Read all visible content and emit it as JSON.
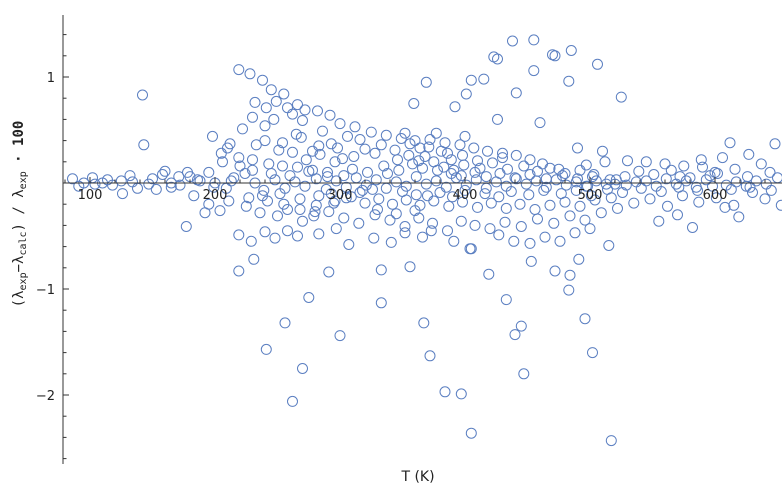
{
  "chart_data": {
    "type": "scatter",
    "xlabel": "T (K)",
    "ylabel_parts": [
      "(λ",
      "exp",
      "−λ",
      "calc",
      ") / λ",
      "exp",
      " · 100"
    ],
    "xlim": [
      70,
      660
    ],
    "ylim": [
      -2.62,
      1.5
    ],
    "x_ticks": [
      100,
      200,
      300,
      400,
      500,
      600
    ],
    "x_tick_labels": [
      "100",
      "200",
      "300",
      "400",
      "500",
      "600"
    ],
    "y_ticks": [
      -2,
      -1,
      1
    ],
    "y_tick_labels": [
      "−2",
      "−1",
      "1"
    ],
    "marker_color": "#5b7fc1",
    "marker": "open-circle",
    "grid": false,
    "points": [
      [
        219,
        1.07
      ],
      [
        228,
        1.03
      ],
      [
        238,
        0.97
      ],
      [
        245,
        0.88
      ],
      [
        255,
        0.84
      ],
      [
        266,
        0.74
      ],
      [
        232,
        0.76
      ],
      [
        241,
        0.71
      ],
      [
        249,
        0.77
      ],
      [
        258,
        0.71
      ],
      [
        262,
        0.65
      ],
      [
        272,
        0.69
      ],
      [
        282,
        0.68
      ],
      [
        292,
        0.64
      ],
      [
        230,
        0.62
      ],
      [
        247,
        0.6
      ],
      [
        270,
        0.59
      ],
      [
        300,
        0.56
      ],
      [
        312,
        0.53
      ],
      [
        325,
        0.48
      ],
      [
        337,
        0.45
      ],
      [
        349,
        0.42
      ],
      [
        360,
        0.4
      ],
      [
        372,
        0.41
      ],
      [
        384,
        0.38
      ],
      [
        396,
        0.36
      ],
      [
        407,
        0.33
      ],
      [
        418,
        0.3
      ],
      [
        430,
        0.28
      ],
      [
        441,
        0.26
      ],
      [
        452,
        0.22
      ],
      [
        240,
        0.54
      ],
      [
        222,
        0.51
      ],
      [
        265,
        0.46
      ],
      [
        286,
        0.49
      ],
      [
        306,
        0.44
      ],
      [
        316,
        0.41
      ],
      [
        198,
        0.44
      ],
      [
        212,
        0.37
      ],
      [
        205,
        0.28
      ],
      [
        219,
        0.24
      ],
      [
        230,
        0.22
      ],
      [
        243,
        0.18
      ],
      [
        254,
        0.16
      ],
      [
        266,
        0.15
      ],
      [
        278,
        0.12
      ],
      [
        290,
        0.1
      ],
      [
        303,
        0.07
      ],
      [
        142,
        0.83
      ],
      [
        143,
        0.36
      ],
      [
        206,
        0.2
      ],
      [
        210,
        0.33
      ],
      [
        233,
        0.36
      ],
      [
        278,
        0.3
      ],
      [
        293,
        0.37
      ],
      [
        352,
        0.47
      ],
      [
        377,
        0.47
      ],
      [
        400,
        0.44
      ],
      [
        369,
        0.95
      ],
      [
        359,
        0.75
      ],
      [
        392,
        0.72
      ],
      [
        401,
        0.84
      ],
      [
        405,
        0.97
      ],
      [
        415,
        0.98
      ],
      [
        423,
        1.19
      ],
      [
        426,
        1.17
      ],
      [
        438,
        1.34
      ],
      [
        455,
        1.35
      ],
      [
        470,
        1.21
      ],
      [
        472,
        1.2
      ],
      [
        485,
        1.25
      ],
      [
        506,
        1.12
      ],
      [
        455,
        1.06
      ],
      [
        483,
        0.96
      ],
      [
        441,
        0.85
      ],
      [
        426,
        0.6
      ],
      [
        460,
        0.57
      ],
      [
        490,
        0.33
      ],
      [
        525,
        0.81
      ],
      [
        510,
        0.3
      ],
      [
        530,
        0.21
      ],
      [
        545,
        0.2
      ],
      [
        560,
        0.18
      ],
      [
        575,
        0.16
      ],
      [
        590,
        0.15
      ],
      [
        606,
        0.24
      ],
      [
        612,
        0.38
      ],
      [
        627,
        0.27
      ],
      [
        648,
        0.37
      ],
      [
        660,
        0.03
      ],
      [
        637,
        0.18
      ],
      [
        600,
        0.1
      ],
      [
        572,
        0.06
      ],
      [
        545,
        0.02
      ],
      [
        520,
        -0.01
      ],
      [
        498,
        -0.03
      ],
      [
        95,
        0.0
      ],
      [
        102,
        0.05
      ],
      [
        110,
        0.0
      ],
      [
        118,
        -0.02
      ],
      [
        125,
        0.02
      ],
      [
        134,
        0.01
      ],
      [
        138,
        -0.05
      ],
      [
        150,
        0.04
      ],
      [
        158,
        0.08
      ],
      [
        165,
        0.0
      ],
      [
        172,
        -0.02
      ],
      [
        180,
        0.06
      ],
      [
        188,
        0.02
      ],
      [
        195,
        0.1
      ],
      [
        200,
        0.0
      ],
      [
        86,
        0.04
      ],
      [
        91,
        -0.03
      ],
      [
        104,
        -0.01
      ],
      [
        114,
        0.03
      ],
      [
        126,
        -0.1
      ],
      [
        132,
        0.07
      ],
      [
        147,
        -0.01
      ],
      [
        160,
        0.11
      ],
      [
        178,
        0.1
      ],
      [
        209,
        -0.05
      ],
      [
        215,
        0.05
      ],
      [
        224,
        0.09
      ],
      [
        232,
        0.0
      ],
      [
        239,
        -0.07
      ],
      [
        248,
        0.03
      ],
      [
        256,
        -0.05
      ],
      [
        264,
        0.01
      ],
      [
        272,
        -0.03
      ],
      [
        281,
        0.04
      ],
      [
        289,
        -0.06
      ],
      [
        297,
        0.02
      ],
      [
        305,
        -0.04
      ],
      [
        313,
        0.05
      ],
      [
        321,
        -0.02
      ],
      [
        329,
        0.03
      ],
      [
        337,
        -0.05
      ],
      [
        345,
        0.01
      ],
      [
        353,
        -0.03
      ],
      [
        361,
        0.06
      ],
      [
        369,
        -0.01
      ],
      [
        377,
        0.02
      ],
      [
        385,
        -0.04
      ],
      [
        393,
        0.05
      ],
      [
        401,
        -0.02
      ],
      [
        409,
        0.03
      ],
      [
        417,
        -0.05
      ],
      [
        425,
        0.01
      ],
      [
        433,
        -0.03
      ],
      [
        441,
        0.04
      ],
      [
        449,
        -0.01
      ],
      [
        457,
        0.02
      ],
      [
        465,
        -0.04
      ],
      [
        473,
        0.03
      ],
      [
        481,
        -0.02
      ],
      [
        489,
        0.01
      ],
      [
        497,
        -0.03
      ],
      [
        505,
        0.02
      ],
      [
        513,
        -0.01
      ],
      [
        521,
        0.03
      ],
      [
        529,
        -0.02
      ],
      [
        537,
        0.01
      ],
      [
        553,
        -0.03
      ],
      [
        561,
        0.04
      ],
      [
        569,
        -0.01
      ],
      [
        577,
        0.02
      ],
      [
        585,
        -0.04
      ],
      [
        593,
        0.03
      ],
      [
        609,
        -0.02
      ],
      [
        617,
        0.01
      ],
      [
        625,
        -0.03
      ],
      [
        633,
        0.02
      ],
      [
        641,
        -0.01
      ],
      [
        650,
        0.05
      ],
      [
        230,
        0.12
      ],
      [
        245,
        0.09
      ],
      [
        260,
        0.07
      ],
      [
        275,
        0.11
      ],
      [
        290,
        0.06
      ],
      [
        310,
        0.13
      ],
      [
        322,
        0.1
      ],
      [
        335,
        0.16
      ],
      [
        347,
        0.12
      ],
      [
        358,
        0.18
      ],
      [
        366,
        0.14
      ],
      [
        375,
        0.2
      ],
      [
        383,
        0.15
      ],
      [
        391,
        0.12
      ],
      [
        399,
        0.17
      ],
      [
        412,
        0.14
      ],
      [
        422,
        0.19
      ],
      [
        434,
        0.13
      ],
      [
        447,
        0.16
      ],
      [
        458,
        0.11
      ],
      [
        468,
        0.14
      ],
      [
        480,
        0.09
      ],
      [
        492,
        0.12
      ],
      [
        503,
        0.08
      ],
      [
        238,
        -0.12
      ],
      [
        252,
        -0.1
      ],
      [
        268,
        -0.15
      ],
      [
        283,
        -0.12
      ],
      [
        296,
        -0.17
      ],
      [
        309,
        -0.13
      ],
      [
        320,
        -0.19
      ],
      [
        331,
        -0.15
      ],
      [
        342,
        -0.2
      ],
      [
        353,
        -0.16
      ],
      [
        364,
        -0.21
      ],
      [
        375,
        -0.17
      ],
      [
        387,
        -0.22
      ],
      [
        398,
        -0.18
      ],
      [
        410,
        -0.23
      ],
      [
        421,
        -0.19
      ],
      [
        433,
        -0.24
      ],
      [
        444,
        -0.2
      ],
      [
        456,
        -0.25
      ],
      [
        468,
        -0.21
      ],
      [
        480,
        -0.18
      ],
      [
        492,
        -0.22
      ],
      [
        504,
        -0.16
      ],
      [
        517,
        -0.14
      ],
      [
        183,
        -0.12
      ],
      [
        192,
        -0.28
      ],
      [
        177,
        -0.41
      ],
      [
        195,
        -0.2
      ],
      [
        204,
        -0.26
      ],
      [
        211,
        -0.17
      ],
      [
        225,
        -0.22
      ],
      [
        236,
        -0.28
      ],
      [
        250,
        -0.31
      ],
      [
        258,
        -0.25
      ],
      [
        270,
        -0.36
      ],
      [
        279,
        -0.31
      ],
      [
        291,
        -0.27
      ],
      [
        303,
        -0.33
      ],
      [
        315,
        -0.38
      ],
      [
        328,
        -0.3
      ],
      [
        340,
        -0.35
      ],
      [
        352,
        -0.41
      ],
      [
        363,
        -0.33
      ],
      [
        374,
        -0.38
      ],
      [
        386,
        -0.45
      ],
      [
        397,
        -0.36
      ],
      [
        408,
        -0.4
      ],
      [
        420,
        -0.43
      ],
      [
        432,
        -0.37
      ],
      [
        445,
        -0.41
      ],
      [
        458,
        -0.34
      ],
      [
        471,
        -0.38
      ],
      [
        484,
        -0.31
      ],
      [
        496,
        -0.35
      ],
      [
        509,
        -0.28
      ],
      [
        522,
        -0.24
      ],
      [
        535,
        -0.19
      ],
      [
        548,
        -0.15
      ],
      [
        562,
        -0.22
      ],
      [
        574,
        -0.12
      ],
      [
        587,
        -0.18
      ],
      [
        601,
        -0.14
      ],
      [
        615,
        -0.21
      ],
      [
        630,
        -0.09
      ],
      [
        640,
        -0.15
      ],
      [
        662,
        -0.3
      ],
      [
        653,
        -0.21
      ],
      [
        619,
        -0.32
      ],
      [
        608,
        -0.23
      ],
      [
        582,
        -0.42
      ],
      [
        570,
        -0.3
      ],
      [
        555,
        -0.36
      ],
      [
        219,
        -0.49
      ],
      [
        229,
        -0.55
      ],
      [
        240,
        -0.46
      ],
      [
        248,
        -0.52
      ],
      [
        258,
        -0.45
      ],
      [
        266,
        -0.5
      ],
      [
        283,
        -0.48
      ],
      [
        297,
        -0.43
      ],
      [
        307,
        -0.58
      ],
      [
        327,
        -0.52
      ],
      [
        341,
        -0.56
      ],
      [
        352,
        -0.47
      ],
      [
        366,
        -0.51
      ],
      [
        373,
        -0.45
      ],
      [
        391,
        -0.55
      ],
      [
        404,
        -0.62
      ],
      [
        427,
        -0.49
      ],
      [
        439,
        -0.55
      ],
      [
        452,
        -0.57
      ],
      [
        464,
        -0.51
      ],
      [
        476,
        -0.55
      ],
      [
        488,
        -0.47
      ],
      [
        500,
        -0.43
      ],
      [
        219,
        -0.83
      ],
      [
        231,
        -0.72
      ],
      [
        291,
        -0.84
      ],
      [
        333,
        -0.82
      ],
      [
        356,
        -0.79
      ],
      [
        405,
        -0.62
      ],
      [
        419,
        -0.86
      ],
      [
        433,
        -1.1
      ],
      [
        453,
        -0.74
      ],
      [
        472,
        -0.83
      ],
      [
        484,
        -0.87
      ],
      [
        483,
        -1.01
      ],
      [
        491,
        -0.72
      ],
      [
        515,
        -0.59
      ],
      [
        333,
        -1.13
      ],
      [
        275,
        -1.08
      ],
      [
        256,
        -1.32
      ],
      [
        241,
        -1.57
      ],
      [
        300,
        -1.44
      ],
      [
        270,
        -1.75
      ],
      [
        367,
        -1.32
      ],
      [
        372,
        -1.63
      ],
      [
        384,
        -1.97
      ],
      [
        397,
        -1.99
      ],
      [
        440,
        -1.43
      ],
      [
        445,
        -1.35
      ],
      [
        447,
        -1.8
      ],
      [
        496,
        -1.28
      ],
      [
        502,
        -1.6
      ],
      [
        405,
        -2.36
      ],
      [
        517,
        -2.43
      ],
      [
        262,
        -2.06
      ],
      [
        280,
        -0.27
      ],
      [
        293,
        -0.1
      ],
      [
        318,
        -0.07
      ],
      [
        338,
        0.09
      ],
      [
        355,
        0.26
      ],
      [
        368,
        0.25
      ],
      [
        381,
        0.3
      ],
      [
        389,
        0.22
      ],
      [
        311,
        0.25
      ],
      [
        302,
        0.23
      ],
      [
        296,
        0.2
      ],
      [
        284,
        0.27
      ],
      [
        273,
        0.22
      ],
      [
        262,
        0.29
      ],
      [
        251,
        0.31
      ],
      [
        220,
        0.16
      ],
      [
        213,
        0.02
      ],
      [
        199,
        -0.04
      ],
      [
        186,
        0.03
      ],
      [
        171,
        0.06
      ],
      [
        165,
        -0.04
      ],
      [
        153,
        -0.06
      ],
      [
        320,
        0.32
      ],
      [
        333,
        0.36
      ],
      [
        344,
        0.31
      ],
      [
        371,
        0.34
      ],
      [
        386,
        0.28
      ],
      [
        398,
        0.26
      ],
      [
        410,
        0.21
      ],
      [
        430,
        0.24
      ],
      [
        462,
        0.18
      ],
      [
        475,
        0.13
      ],
      [
        497,
        0.17
      ],
      [
        512,
        0.2
      ],
      [
        539,
        0.11
      ],
      [
        551,
        0.08
      ],
      [
        565,
        0.12
      ],
      [
        580,
        0.05
      ],
      [
        596,
        0.07
      ],
      [
        589,
        0.22
      ],
      [
        602,
        0.09
      ],
      [
        616,
        0.13
      ],
      [
        626,
        0.06
      ],
      [
        644,
        0.1
      ],
      [
        330,
        -0.25
      ],
      [
        345,
        -0.29
      ],
      [
        360,
        -0.26
      ],
      [
        370,
        -0.12
      ],
      [
        380,
        -0.09
      ],
      [
        390,
        -0.13
      ],
      [
        400,
        -0.07
      ],
      [
        350,
        -0.08
      ],
      [
        361,
        -0.11
      ],
      [
        326,
        -0.06
      ],
      [
        316,
        -0.09
      ],
      [
        305,
        -0.14
      ],
      [
        295,
        -0.19
      ],
      [
        281,
        -0.21
      ],
      [
        268,
        -0.25
      ],
      [
        255,
        -0.2
      ],
      [
        242,
        -0.17
      ],
      [
        227,
        -0.14
      ],
      [
        416,
        -0.1
      ],
      [
        427,
        -0.13
      ],
      [
        437,
        -0.08
      ],
      [
        451,
        -0.11
      ],
      [
        463,
        -0.07
      ],
      [
        477,
        -0.1
      ],
      [
        489,
        -0.07
      ],
      [
        501,
        -0.12
      ],
      [
        514,
        -0.06
      ],
      [
        526,
        -0.09
      ],
      [
        541,
        -0.05
      ],
      [
        557,
        -0.08
      ],
      [
        571,
        -0.04
      ],
      [
        586,
        -0.07
      ],
      [
        598,
        -0.03
      ],
      [
        613,
        -0.06
      ],
      [
        628,
        -0.04
      ],
      [
        645,
        -0.07
      ],
      [
        240,
        0.4
      ],
      [
        254,
        0.38
      ],
      [
        269,
        0.43
      ],
      [
        283,
        0.35
      ],
      [
        298,
        0.33
      ],
      [
        328,
        0.28
      ],
      [
        346,
        0.22
      ],
      [
        363,
        0.21
      ],
      [
        356,
        0.37
      ],
      [
        364,
        0.33
      ],
      [
        378,
        0.12
      ],
      [
        389,
        0.09
      ],
      [
        397,
        0.07
      ],
      [
        408,
        0.1
      ],
      [
        417,
        0.06
      ],
      [
        428,
        0.09
      ],
      [
        440,
        0.05
      ],
      [
        452,
        0.08
      ],
      [
        465,
        0.04
      ],
      [
        478,
        0.07
      ],
      [
        490,
        0.04
      ],
      [
        502,
        0.06
      ],
      [
        516,
        0.03
      ],
      [
        528,
        0.06
      ]
    ]
  }
}
